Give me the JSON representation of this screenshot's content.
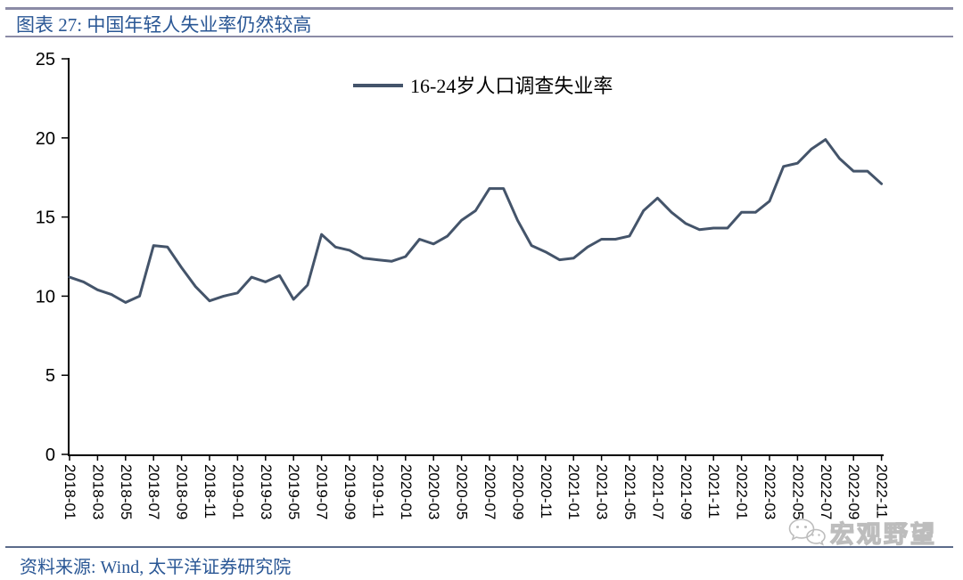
{
  "header": {
    "title": "图表 27: 中国年轻人失业率仍然较高"
  },
  "footer": {
    "source": "资料来源: Wind, 太平洋证券研究院",
    "watermark": "宏观野望",
    "watermark_icon": "wechat-icon"
  },
  "colors": {
    "line": "#44546A",
    "title_text": "#2A5795",
    "rule_top": "#8B8BA6",
    "rule_bottom": "#5B6B8A",
    "axis": "#000000",
    "watermark": "#BDBDBD"
  },
  "chart_data": {
    "type": "line",
    "title": "",
    "xlabel": "",
    "ylabel": "",
    "legend": [
      "16-24岁人口调查失业率"
    ],
    "legend_position": "top-center",
    "grid": false,
    "ylim": [
      0,
      25
    ],
    "yticks": [
      0,
      5,
      10,
      15,
      20,
      25
    ],
    "xtick_every": 2,
    "x": [
      "2018-01",
      "2018-02",
      "2018-03",
      "2018-04",
      "2018-05",
      "2018-06",
      "2018-07",
      "2018-08",
      "2018-09",
      "2018-10",
      "2018-11",
      "2018-12",
      "2019-01",
      "2019-02",
      "2019-03",
      "2019-04",
      "2019-05",
      "2019-06",
      "2019-07",
      "2019-08",
      "2019-09",
      "2019-10",
      "2019-11",
      "2019-12",
      "2020-01",
      "2020-02",
      "2020-03",
      "2020-04",
      "2020-05",
      "2020-06",
      "2020-07",
      "2020-08",
      "2020-09",
      "2020-10",
      "2020-11",
      "2020-12",
      "2021-01",
      "2021-02",
      "2021-03",
      "2021-04",
      "2021-05",
      "2021-06",
      "2021-07",
      "2021-08",
      "2021-09",
      "2021-10",
      "2021-11",
      "2021-12",
      "2022-01",
      "2022-02",
      "2022-03",
      "2022-04",
      "2022-05",
      "2022-06",
      "2022-07",
      "2022-08",
      "2022-09",
      "2022-10",
      "2022-11"
    ],
    "series": [
      {
        "name": "16-24岁人口调查失业率",
        "color": "#44546A",
        "values": [
          11.2,
          10.9,
          10.4,
          10.1,
          9.6,
          10.0,
          13.2,
          13.1,
          11.8,
          10.6,
          9.7,
          10.0,
          10.2,
          11.2,
          10.9,
          11.3,
          9.8,
          10.7,
          13.9,
          13.1,
          12.9,
          12.4,
          12.3,
          12.2,
          12.5,
          13.6,
          13.3,
          13.8,
          14.8,
          15.4,
          16.8,
          16.8,
          14.8,
          13.2,
          12.8,
          12.3,
          12.4,
          13.1,
          13.6,
          13.6,
          13.8,
          15.4,
          16.2,
          15.3,
          14.6,
          14.2,
          14.3,
          14.3,
          15.3,
          15.3,
          16.0,
          18.2,
          18.4,
          19.3,
          19.9,
          18.7,
          17.9,
          17.9,
          17.1
        ]
      }
    ]
  }
}
